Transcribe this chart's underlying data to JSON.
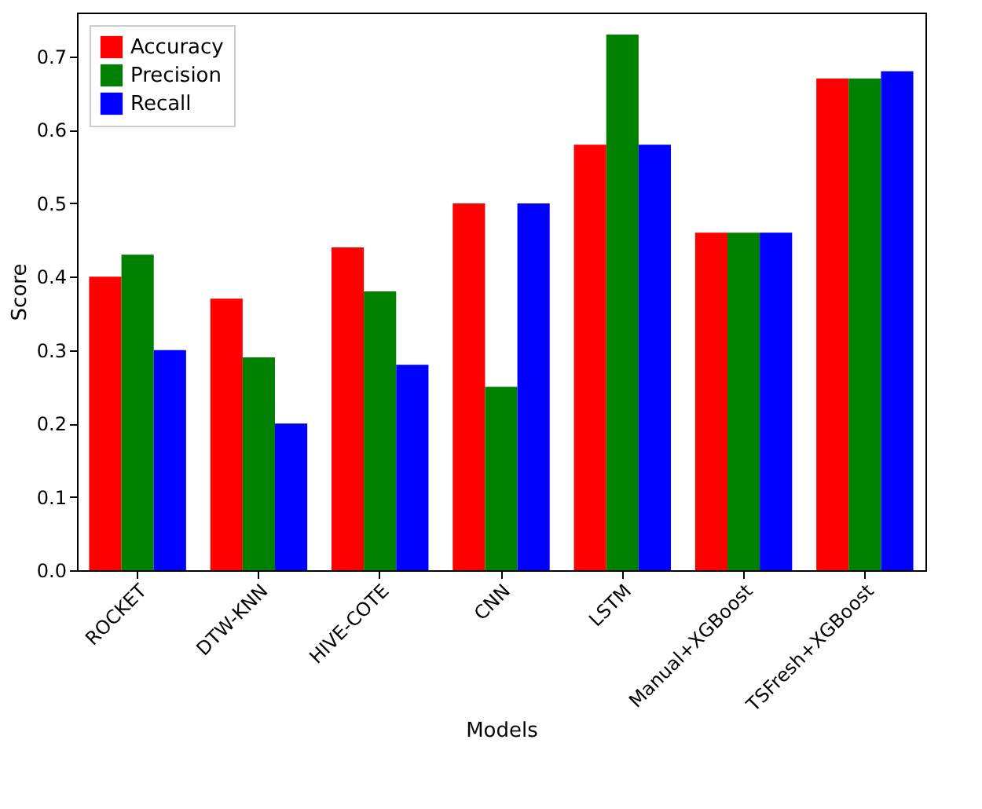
{
  "chart_data": {
    "type": "bar",
    "xlabel": "Models",
    "ylabel": "Score",
    "categories": [
      "ROCKET",
      "DTW-KNN",
      "HIVE-COTE",
      "CNN",
      "LSTM",
      "Manual+XGBoost",
      "TSFresh+XGBoost"
    ],
    "series": [
      {
        "name": "Accuracy",
        "color": "#ff0000",
        "values": [
          0.4,
          0.37,
          0.44,
          0.5,
          0.58,
          0.46,
          0.67
        ]
      },
      {
        "name": "Precision",
        "color": "#008000",
        "values": [
          0.43,
          0.29,
          0.38,
          0.25,
          0.73,
          0.46,
          0.67
        ]
      },
      {
        "name": "Recall",
        "color": "#0000ff",
        "values": [
          0.3,
          0.2,
          0.28,
          0.5,
          0.58,
          0.46,
          0.68
        ]
      }
    ],
    "ylim": [
      0,
      0.76
    ],
    "yticks": [
      {
        "value": 0,
        "label": "0.0"
      },
      0.1,
      0.2,
      0.3,
      0.4,
      0.5,
      0.6,
      0.7
    ],
    "legend": "top left",
    "grid": false
  }
}
